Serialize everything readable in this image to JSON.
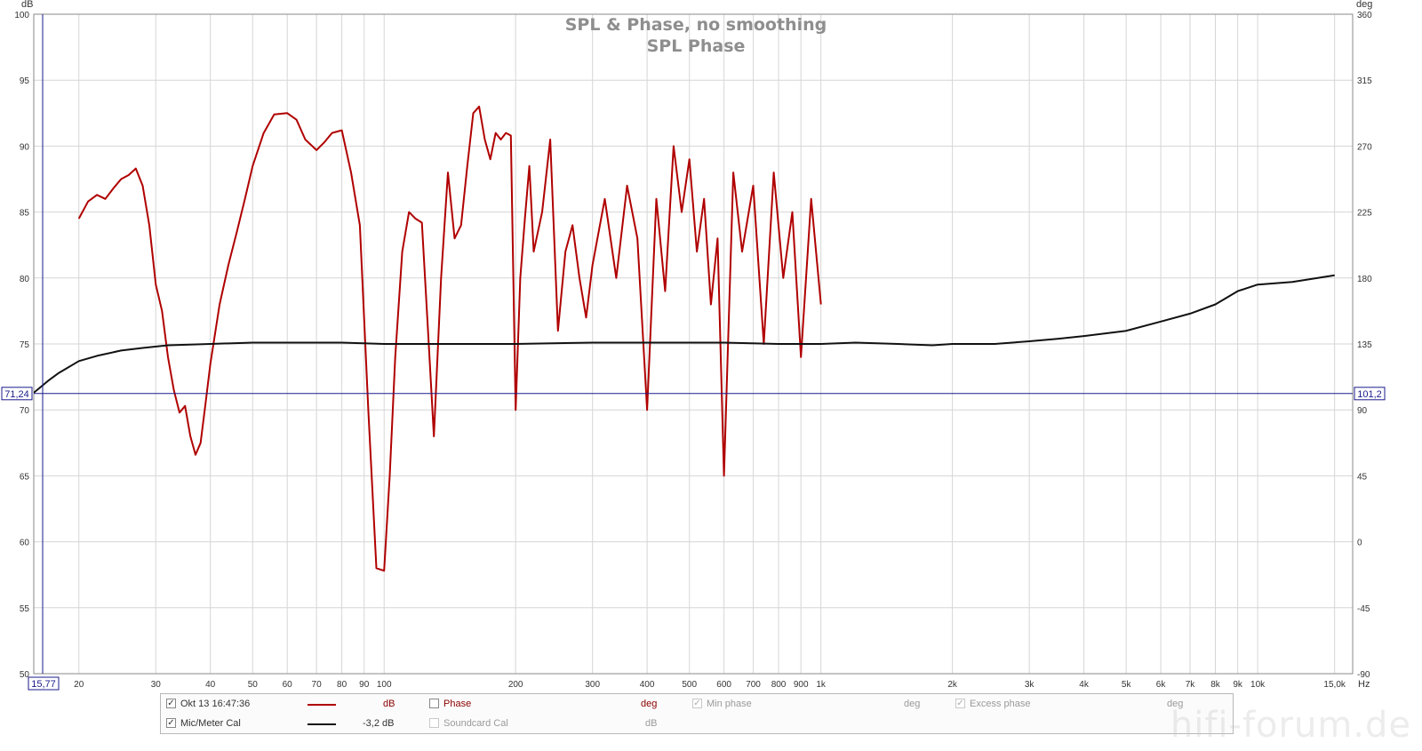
{
  "chart_data": {
    "type": "line",
    "title": "SPL & Phase, no smoothing",
    "subtitle": "SPL Phase",
    "left_unit": "dB",
    "right_unit": "deg",
    "x_unit": "Hz",
    "xscale": "log",
    "xlim": [
      15.77,
      16500
    ],
    "ylim": [
      50,
      100
    ],
    "y2lim": [
      -90,
      360
    ],
    "grid": true,
    "y_ticks": [
      50,
      55,
      60,
      65,
      70,
      75,
      80,
      85,
      90,
      95,
      100
    ],
    "y2_ticks": [
      -90,
      -45,
      0,
      45,
      90,
      135,
      180,
      225,
      270,
      315,
      360
    ],
    "x_ticks": [
      {
        "value": 20,
        "label": "20"
      },
      {
        "value": 30,
        "label": "30"
      },
      {
        "value": 40,
        "label": "40"
      },
      {
        "value": 50,
        "label": "50"
      },
      {
        "value": 60,
        "label": "60"
      },
      {
        "value": 70,
        "label": "70"
      },
      {
        "value": 80,
        "label": "80"
      },
      {
        "value": 90,
        "label": "90"
      },
      {
        "value": 100,
        "label": "100"
      },
      {
        "value": 200,
        "label": "200"
      },
      {
        "value": 300,
        "label": "300"
      },
      {
        "value": 400,
        "label": "400"
      },
      {
        "value": 500,
        "label": "500"
      },
      {
        "value": 600,
        "label": "600"
      },
      {
        "value": 700,
        "label": "700"
      },
      {
        "value": 800,
        "label": "800"
      },
      {
        "value": 900,
        "label": "900"
      },
      {
        "value": 1000,
        "label": "1k"
      },
      {
        "value": 2000,
        "label": "2k"
      },
      {
        "value": 3000,
        "label": "3k"
      },
      {
        "value": 4000,
        "label": "4k"
      },
      {
        "value": 5000,
        "label": "5k"
      },
      {
        "value": 6000,
        "label": "6k"
      },
      {
        "value": 7000,
        "label": "7k"
      },
      {
        "value": 8000,
        "label": "8k"
      },
      {
        "value": 9000,
        "label": "9k"
      },
      {
        "value": 10000,
        "label": "10k"
      },
      {
        "value": 15000,
        "label": "15,0k"
      }
    ],
    "cursor": {
      "x_label": "15,77",
      "y_label": "71,24",
      "y2_label": "101,2",
      "y_value": 71.24
    },
    "series": [
      {
        "name": "Okt 13 16:47:36",
        "color": "#b00000",
        "axis": "left",
        "x": [
          20,
          21,
          22,
          23,
          24,
          25,
          26,
          27,
          28,
          29,
          30,
          31,
          32,
          33,
          34,
          35,
          36,
          37,
          38,
          39,
          40,
          42,
          44,
          46,
          48,
          50,
          53,
          56,
          60,
          63,
          66,
          70,
          73,
          76,
          80,
          84,
          88,
          92,
          96,
          100,
          103,
          106,
          110,
          114,
          118,
          122,
          126,
          130,
          135,
          140,
          145,
          150,
          155,
          160,
          165,
          170,
          175,
          180,
          185,
          190,
          195,
          200,
          205,
          210,
          215,
          220,
          230,
          240,
          250,
          260,
          270,
          280,
          290,
          300,
          320,
          340,
          360,
          380,
          400,
          420,
          440,
          460,
          480,
          500,
          520,
          540,
          560,
          580,
          600,
          630,
          660,
          700,
          740,
          780,
          820,
          860,
          900,
          950,
          1000
        ],
        "values": [
          84.5,
          85.8,
          86.3,
          86.0,
          86.8,
          87.5,
          87.8,
          88.3,
          87.0,
          84.0,
          79.5,
          77.5,
          74.0,
          71.5,
          69.8,
          70.3,
          68.0,
          66.6,
          67.5,
          70.5,
          73.5,
          78.0,
          81.0,
          83.5,
          86.0,
          88.5,
          91.0,
          92.4,
          92.5,
          92.0,
          90.5,
          89.7,
          90.3,
          91.0,
          91.2,
          88.0,
          84.0,
          70.0,
          58.0,
          57.8,
          65.0,
          74.0,
          82.0,
          85.0,
          84.5,
          84.2,
          76.0,
          68.0,
          80.0,
          88.0,
          83.0,
          84.0,
          88.5,
          92.5,
          93.0,
          90.5,
          89.0,
          91.0,
          90.5,
          91.0,
          90.8,
          70.0,
          80.0,
          84.5,
          88.5,
          82.0,
          85.0,
          90.5,
          76.0,
          82.0,
          84.0,
          80.0,
          77.0,
          81.0,
          86.0,
          80.0,
          87.0,
          83.0,
          70.0,
          86.0,
          79.0,
          90.0,
          85.0,
          89.0,
          82.0,
          86.0,
          78.0,
          83.0,
          65.0,
          88.0,
          82.0,
          87.0,
          75.0,
          88.0,
          80.0,
          85.0,
          74.0,
          86.0,
          78.0
        ]
      },
      {
        "name": "Mic/Meter Cal",
        "color": "#111111",
        "axis": "left",
        "x": [
          15.77,
          17,
          18,
          20,
          22,
          25,
          28,
          32,
          40,
          50,
          60,
          80,
          100,
          150,
          200,
          300,
          400,
          500,
          600,
          800,
          1000,
          1200,
          1500,
          1800,
          2000,
          2500,
          3000,
          3500,
          4000,
          5000,
          6000,
          7000,
          8000,
          9000,
          10000,
          12000,
          15000
        ],
        "values": [
          71.3,
          72.2,
          72.8,
          73.7,
          74.1,
          74.5,
          74.7,
          74.9,
          75.0,
          75.1,
          75.1,
          75.1,
          75.0,
          75.0,
          75.0,
          75.1,
          75.1,
          75.1,
          75.1,
          75.0,
          75.0,
          75.1,
          75.0,
          74.9,
          75.0,
          75.0,
          75.2,
          75.4,
          75.6,
          76.0,
          76.7,
          77.3,
          78.0,
          79.0,
          79.5,
          79.7,
          80.2
        ]
      }
    ]
  },
  "legend": {
    "row1": {
      "checked": "✓",
      "name": "Okt 13 16:47:36",
      "unit": "dB",
      "phase_label": "Phase",
      "phase_unit": "deg",
      "min_phase_label": "Min phase",
      "min_phase_unit": "deg",
      "excess_phase_label": "Excess phase",
      "excess_phase_unit": "deg"
    },
    "row2": {
      "checked": "✓",
      "name": "Mic/Meter Cal",
      "value": "-3,2 dB",
      "soundcard_label": "Soundcard Cal",
      "soundcard_unit": "dB"
    }
  },
  "watermark": "hifi-forum.de"
}
